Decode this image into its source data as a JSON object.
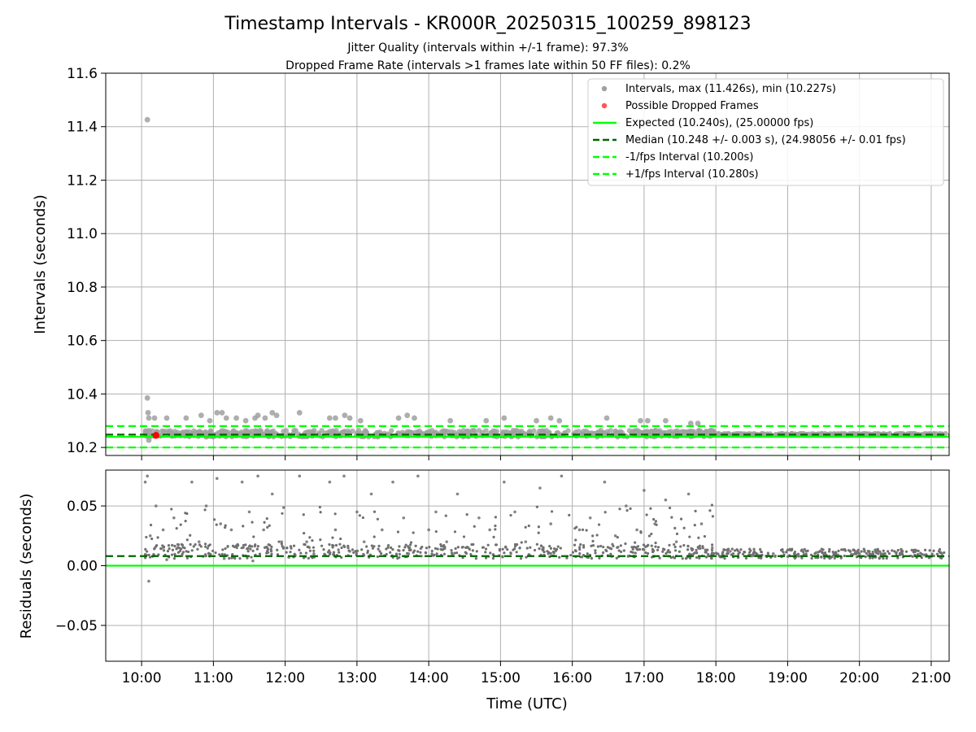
{
  "figure": {
    "title": "Timestamp Intervals - KR000R_20250315_100259_898123",
    "subtitle_1": "Jitter Quality (intervals within +/-1 frame): 97.3%",
    "subtitle_2": "Dropped Frame Rate (intervals >1 frames late within 50 FF files): 0.2%"
  },
  "chart_data": [
    {
      "type": "scatter",
      "panel": "top",
      "title": "",
      "xlabel": "",
      "ylabel": "Intervals (seconds)",
      "x_unit": "hours UTC",
      "xlim": [
        9.5,
        21.25
      ],
      "ylim": [
        10.17,
        11.6
      ],
      "yticks": [
        10.2,
        10.4,
        10.6,
        10.8,
        11.0,
        11.2,
        11.4,
        11.6
      ],
      "ytick_labels": [
        "10.2",
        "10.4",
        "10.6",
        "10.8",
        "11.0",
        "11.2",
        "11.4",
        "11.6"
      ],
      "grid": true,
      "legend_position": "top-right",
      "series": [
        {
          "name": "Intervals, max (11.426s), min (10.227s)",
          "kind": "points",
          "color": "#a0a0a0",
          "x": [
            10.08,
            10.08,
            10.09,
            10.1,
            10.1,
            10.18,
            10.35,
            10.62,
            10.83,
            10.95,
            11.05,
            11.12,
            11.18,
            11.32,
            11.45,
            11.58,
            11.62,
            11.72,
            11.82,
            11.88,
            12.2,
            12.62,
            12.7,
            12.83,
            12.9,
            13.05,
            13.58,
            13.7,
            13.8,
            14.3,
            14.8,
            15.05,
            15.5,
            15.7,
            15.82,
            16.48,
            16.95,
            17.05,
            17.3,
            17.65,
            17.75
          ],
          "y": [
            11.426,
            10.385,
            10.33,
            10.31,
            10.227,
            10.31,
            10.31,
            10.31,
            10.32,
            10.3,
            10.33,
            10.33,
            10.31,
            10.31,
            10.3,
            10.31,
            10.32,
            10.31,
            10.33,
            10.32,
            10.33,
            10.31,
            10.31,
            10.32,
            10.31,
            10.3,
            10.31,
            10.32,
            10.31,
            10.3,
            10.3,
            10.31,
            10.3,
            10.31,
            10.3,
            10.31,
            10.3,
            10.3,
            10.3,
            10.29,
            10.29
          ]
        },
        {
          "name": "Possible Dropped Frames",
          "kind": "points",
          "color": "#ff0000",
          "x": [
            10.2
          ],
          "y": [
            10.245
          ]
        },
        {
          "name": "Expected (10.240s), (25.00000 fps)",
          "kind": "hline",
          "y": 10.24,
          "color": "#00ff00",
          "dash": "solid"
        },
        {
          "name": "Median (10.248 +/- 0.003 s), (24.98056 +/- 0.01 fps)",
          "kind": "hline",
          "y": 10.248,
          "color": "#006400",
          "dash": "dashed"
        },
        {
          "name": "-1/fps Interval (10.200s)",
          "kind": "hline",
          "y": 10.2,
          "color": "#00ff00",
          "dash": "dashed"
        },
        {
          "name": "+1/fps Interval (10.280s)",
          "kind": "hline",
          "y": 10.28,
          "color": "#00ff00",
          "dash": "dashed"
        }
      ]
    },
    {
      "type": "scatter",
      "panel": "bottom",
      "title": "",
      "xlabel": "Time (UTC)",
      "ylabel": "Residuals (seconds)",
      "x_unit": "hours UTC",
      "xlim": [
        9.5,
        21.25
      ],
      "ylim": [
        -0.08,
        0.08
      ],
      "yticks": [
        -0.05,
        0.0,
        0.05
      ],
      "ytick_labels": [
        "−0.05",
        "0.00",
        "0.05"
      ],
      "xticks": [
        10,
        11,
        12,
        13,
        14,
        15,
        16,
        17,
        18,
        19,
        20,
        21
      ],
      "xtick_labels": [
        "10:00",
        "11:00",
        "12:00",
        "13:00",
        "14:00",
        "15:00",
        "16:00",
        "17:00",
        "18:00",
        "19:00",
        "20:00",
        "21:00"
      ],
      "grid": true,
      "series": [
        {
          "name": "",
          "kind": "points",
          "color": "#707070",
          "x": [
            10.05,
            10.08,
            10.1,
            10.12,
            10.2,
            10.3,
            10.35,
            10.45,
            10.7,
            10.8,
            10.9,
            10.95,
            11.05,
            11.1,
            11.15,
            11.25,
            11.4,
            11.5,
            11.55,
            11.62,
            11.7,
            11.82,
            11.95,
            12.05,
            12.2,
            12.3,
            12.4,
            12.62,
            12.7,
            12.82,
            12.9,
            13.0,
            13.1,
            13.2,
            13.35,
            13.5,
            13.65,
            13.72,
            13.85,
            14.0,
            14.1,
            14.25,
            14.4,
            14.55,
            14.7,
            14.85,
            15.05,
            15.2,
            15.35,
            15.55,
            15.7,
            15.85,
            16.1,
            16.25,
            16.45,
            16.6,
            16.75,
            16.9,
            17.0,
            17.15,
            17.3,
            17.45,
            17.62,
            17.8,
            17.95,
            18.2,
            18.5,
            18.8,
            19.1,
            19.4,
            19.7,
            20.0,
            20.3,
            20.6,
            20.9,
            21.15
          ],
          "y": [
            0.07,
            0.075,
            -0.013,
            0.025,
            0.05,
            0.03,
            0.005,
            0.04,
            0.07,
            0.02,
            0.05,
            0.008,
            0.073,
            0.035,
            0.006,
            0.03,
            0.07,
            0.045,
            0.004,
            0.075,
            0.03,
            0.06,
            0.02,
            0.007,
            0.075,
            0.02,
            0.01,
            0.07,
            0.03,
            0.075,
            0.012,
            0.045,
            0.02,
            0.06,
            0.03,
            0.07,
            0.04,
            0.01,
            0.075,
            0.03,
            0.045,
            0.02,
            0.06,
            0.015,
            0.04,
            0.03,
            0.07,
            0.045,
            0.02,
            0.065,
            0.035,
            0.075,
            0.03,
            0.04,
            0.07,
            0.025,
            0.05,
            0.03,
            0.063,
            0.035,
            0.055,
            0.02,
            0.06,
            0.035,
            0.015,
            0.012,
            0.008,
            0.01,
            0.007,
            0.011,
            0.009,
            0.01,
            0.008,
            0.012,
            0.009,
            0.01
          ]
        },
        {
          "name": "",
          "kind": "hline",
          "y": 0.0,
          "color": "#00ff00",
          "dash": "solid"
        },
        {
          "name": "",
          "kind": "hline",
          "y": 0.008,
          "color": "#006400",
          "dash": "dashed"
        }
      ]
    }
  ]
}
